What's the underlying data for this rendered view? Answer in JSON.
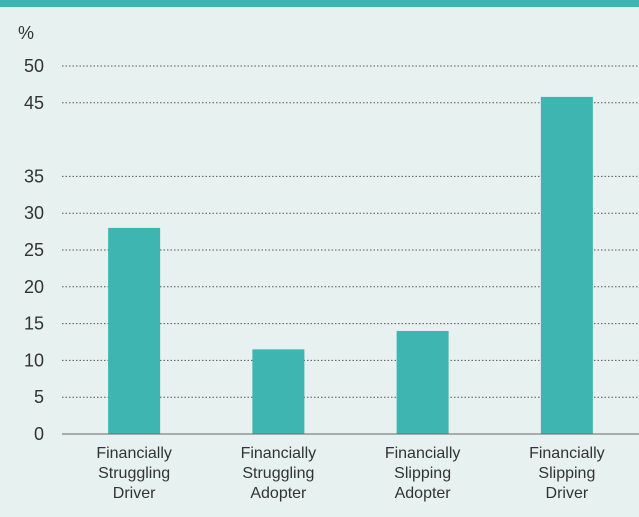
{
  "chart_data": {
    "type": "bar",
    "ylabel": "%",
    "categories": [
      "Financially Struggling Driver",
      "Financially Struggling Adopter",
      "Financially Slipping Adopter",
      "Financially Slipping Driver"
    ],
    "category_lines": [
      [
        "Financially",
        "Struggling",
        "Driver"
      ],
      [
        "Financially",
        "Struggling",
        "Adopter"
      ],
      [
        "Financially",
        "Slipping",
        "Adopter"
      ],
      [
        "Financially",
        "Slipping",
        "Driver"
      ]
    ],
    "values": [
      28,
      11.5,
      14,
      45.8
    ],
    "ylim": [
      0,
      50
    ],
    "yticks": [
      0,
      5,
      10,
      15,
      20,
      25,
      30,
      35,
      45,
      50
    ],
    "grid": true,
    "bar_color": "#3fb5b2",
    "background_color": "#e6f1f0"
  }
}
